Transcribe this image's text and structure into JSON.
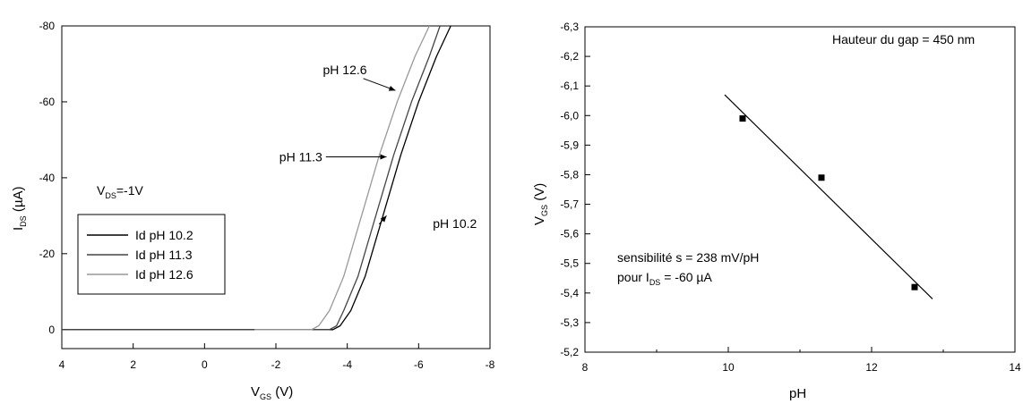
{
  "chart_data": [
    {
      "type": "line",
      "title": "",
      "xlabel_main": "V",
      "xlabel_sub": "GS",
      "xlabel_unit": " (V)",
      "ylabel_main": "I",
      "ylabel_sub": "DS",
      "ylabel_unit": " (µA)",
      "xlim": [
        4,
        -8
      ],
      "ylim": [
        5,
        -80
      ],
      "x_ticks": [
        4,
        2,
        0,
        -2,
        -4,
        -6,
        -8
      ],
      "y_ticks": [
        0,
        -20,
        -40,
        -60,
        -80
      ],
      "condition_main": "V",
      "condition_sub": "DS",
      "condition_value": "=-1V",
      "legend_position": "left",
      "series": [
        {
          "name": "Id pH 10.2",
          "color": "#000000",
          "x": [
            4,
            -3.6,
            -3.8,
            -4.1,
            -4.5,
            -5.0,
            -5.5,
            -6.0,
            -6.5,
            -6.9
          ],
          "y": [
            0,
            0,
            -1,
            -5,
            -14,
            -30,
            -46,
            -60,
            -72,
            -80
          ]
        },
        {
          "name": "Id pH 11.3",
          "color": "#444444",
          "x": [
            4,
            -3.5,
            -3.7,
            -3.9,
            -4.3,
            -4.8,
            -5.3,
            -5.8,
            -6.3,
            -6.6
          ],
          "y": [
            0,
            0,
            -1,
            -5,
            -14,
            -30,
            -46,
            -60,
            -72,
            -80
          ]
        },
        {
          "name": "Id pH 12.6",
          "color": "#999999",
          "x": [
            -1.4,
            -3.0,
            -3.2,
            -3.5,
            -3.9,
            -4.4,
            -4.9,
            -5.4,
            -5.9,
            -6.3
          ],
          "y": [
            0,
            0,
            -1,
            -5,
            -14,
            -30,
            -46,
            -60,
            -72,
            -80
          ]
        }
      ],
      "annotations": [
        {
          "text": "pH 12.6",
          "text_x": -4.55,
          "text_y": -68.5,
          "arrow_to": [
            -5.35,
            -63
          ]
        },
        {
          "text": "pH 11.3",
          "text_x": -3.3,
          "text_y": -45.5,
          "arrow_to": [
            -5.1,
            -45.5
          ]
        },
        {
          "text": "pH 10.2",
          "text_x": -6.4,
          "text_y": -28,
          "arrow_to": [
            -5.1,
            -30
          ]
        }
      ]
    },
    {
      "type": "scatter",
      "title": "",
      "xlabel": "pH",
      "ylabel_main": "V",
      "ylabel_sub": "GS",
      "ylabel_unit": " (V)",
      "xlim": [
        8,
        14
      ],
      "ylim": [
        -5.2,
        -6.3
      ],
      "x_ticks": [
        8,
        10,
        12,
        14
      ],
      "y_ticks": [
        -5.2,
        -5.3,
        -5.4,
        -5.5,
        -5.6,
        -5.7,
        -5.8,
        -5.9,
        -6.0,
        -6.1,
        -6.2,
        -6.3
      ],
      "y_tick_labels": [
        "-5,2",
        "-5,3",
        "-5,4",
        "-5,5",
        "-5,6",
        "-5,7",
        "-5,8",
        "-5,9",
        "-6,0",
        "-6,1",
        "-6,2",
        "-6,3"
      ],
      "points": [
        {
          "x": 10.2,
          "y": -5.99
        },
        {
          "x": 11.3,
          "y": -5.79
        },
        {
          "x": 12.6,
          "y": -5.42
        }
      ],
      "fit_line": {
        "x": [
          9.95,
          12.85
        ],
        "y": [
          -6.07,
          -5.38
        ]
      },
      "gap_label": "Hauteur du gap = 450 nm",
      "sensitivity_text": "sensibilité s = 238 mV/pH",
      "condition_prefix": "pour I",
      "condition_sub": "DS",
      "condition_value": " = -60 µA"
    }
  ]
}
